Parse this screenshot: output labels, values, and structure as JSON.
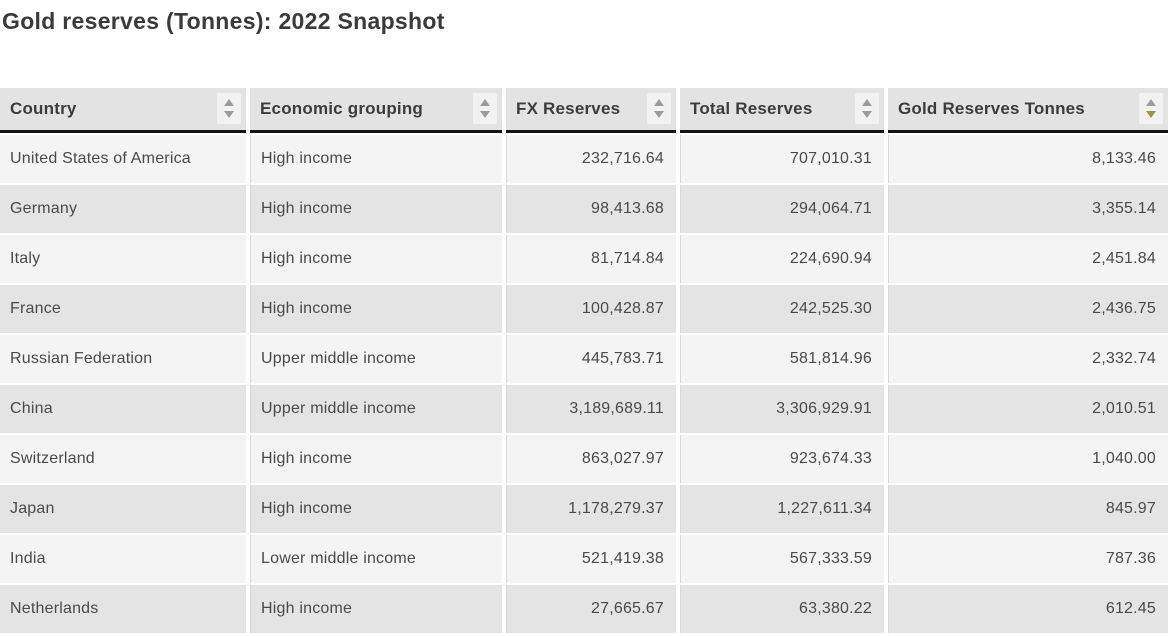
{
  "title": "Gold reserves (Tonnes): 2022 Snapshot",
  "chart_data": {
    "type": "table",
    "title": "Gold reserves (Tonnes): 2022 Snapshot",
    "sort": {
      "column": "Gold Reserves Tonnes",
      "direction": "desc"
    },
    "columns": [
      {
        "label": "Country",
        "align": "left",
        "sort": "none"
      },
      {
        "label": "Economic grouping",
        "align": "left",
        "sort": "none"
      },
      {
        "label": "FX Reserves",
        "align": "right",
        "sort": "none"
      },
      {
        "label": "Total Reserves",
        "align": "right",
        "sort": "none"
      },
      {
        "label": "Gold Reserves Tonnes",
        "align": "right",
        "sort": "desc"
      }
    ],
    "rows": [
      [
        "United States of America",
        "High income",
        "232,716.64",
        "707,010.31",
        "8,133.46"
      ],
      [
        "Germany",
        "High income",
        "98,413.68",
        "294,064.71",
        "3,355.14"
      ],
      [
        "Italy",
        "High income",
        "81,714.84",
        "224,690.94",
        "2,451.84"
      ],
      [
        "France",
        "High income",
        "100,428.87",
        "242,525.30",
        "2,436.75"
      ],
      [
        "Russian Federation",
        "Upper middle income",
        "445,783.71",
        "581,814.96",
        "2,332.74"
      ],
      [
        "China",
        "Upper middle income",
        "3,189,689.11",
        "3,306,929.91",
        "2,010.51"
      ],
      [
        "Switzerland",
        "High income",
        "863,027.97",
        "923,674.33",
        "1,040.00"
      ],
      [
        "Japan",
        "High income",
        "1,178,279.37",
        "1,227,611.34",
        "845.97"
      ],
      [
        "India",
        "Lower middle income",
        "521,419.38",
        "567,333.59",
        "787.36"
      ],
      [
        "Netherlands",
        "High income",
        "27,665.67",
        "63,380.22",
        "612.45"
      ]
    ]
  },
  "colors": {
    "accent_sort_active": "#a5914f",
    "sort_arrow_inactive": "#9c9c9c",
    "header_bg": "#e3e3e3",
    "row_odd_bg": "#f4f4f4",
    "row_even_bg": "#e4e4e4",
    "header_border": "#141414",
    "title_text": "#3a3a3a",
    "cell_text": "#4a4a4a"
  }
}
